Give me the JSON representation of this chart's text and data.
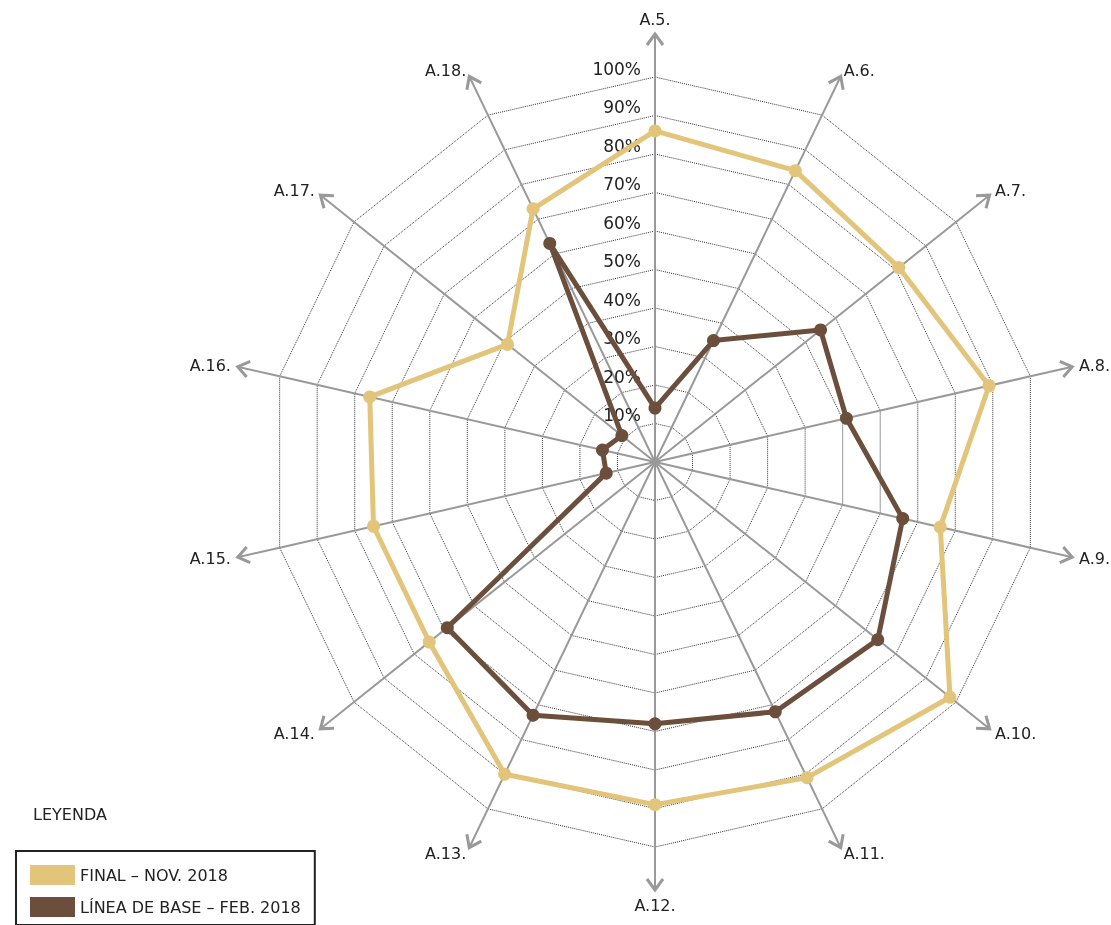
{
  "chart_data": {
    "type": "radar",
    "legend_title": "LEYENDA",
    "categories": [
      "A.5.",
      "A.6.",
      "A.7.",
      "A.8.",
      "A.9.",
      "A.10.",
      "A.11.",
      "A.12.",
      "A.13.",
      "A.14.",
      "A.15.",
      "A.16.",
      "A.17.",
      "A.18."
    ],
    "series": [
      {
        "name": "FINAL – NOV. 2018",
        "color": "#e2c47a",
        "values": [
          86,
          84,
          81,
          89,
          76,
          98,
          91,
          89,
          90,
          75,
          75,
          76,
          49,
          73
        ]
      },
      {
        "name": "LÍNEA DE BASE – FEB. 2018",
        "color": "#6b4f3c",
        "values": [
          14,
          35,
          55,
          51,
          66,
          74,
          72,
          68,
          73,
          69,
          13,
          14,
          11,
          63
        ]
      }
    ],
    "ylim": [
      0,
      100
    ],
    "yticks": [
      {
        "value": 10,
        "label": "10%"
      },
      {
        "value": 20,
        "label": "20%"
      },
      {
        "value": 30,
        "label": "30%"
      },
      {
        "value": 40,
        "label": "40%"
      },
      {
        "value": 50,
        "label": "50%"
      },
      {
        "value": 60,
        "label": "60%"
      },
      {
        "value": 70,
        "label": "70%"
      },
      {
        "value": 80,
        "label": "80%"
      },
      {
        "value": 90,
        "label": "90%"
      },
      {
        "value": 100,
        "label": "100%"
      }
    ],
    "grid": true,
    "legend": "bottom left",
    "marker": "circle",
    "line_style": "solid"
  }
}
